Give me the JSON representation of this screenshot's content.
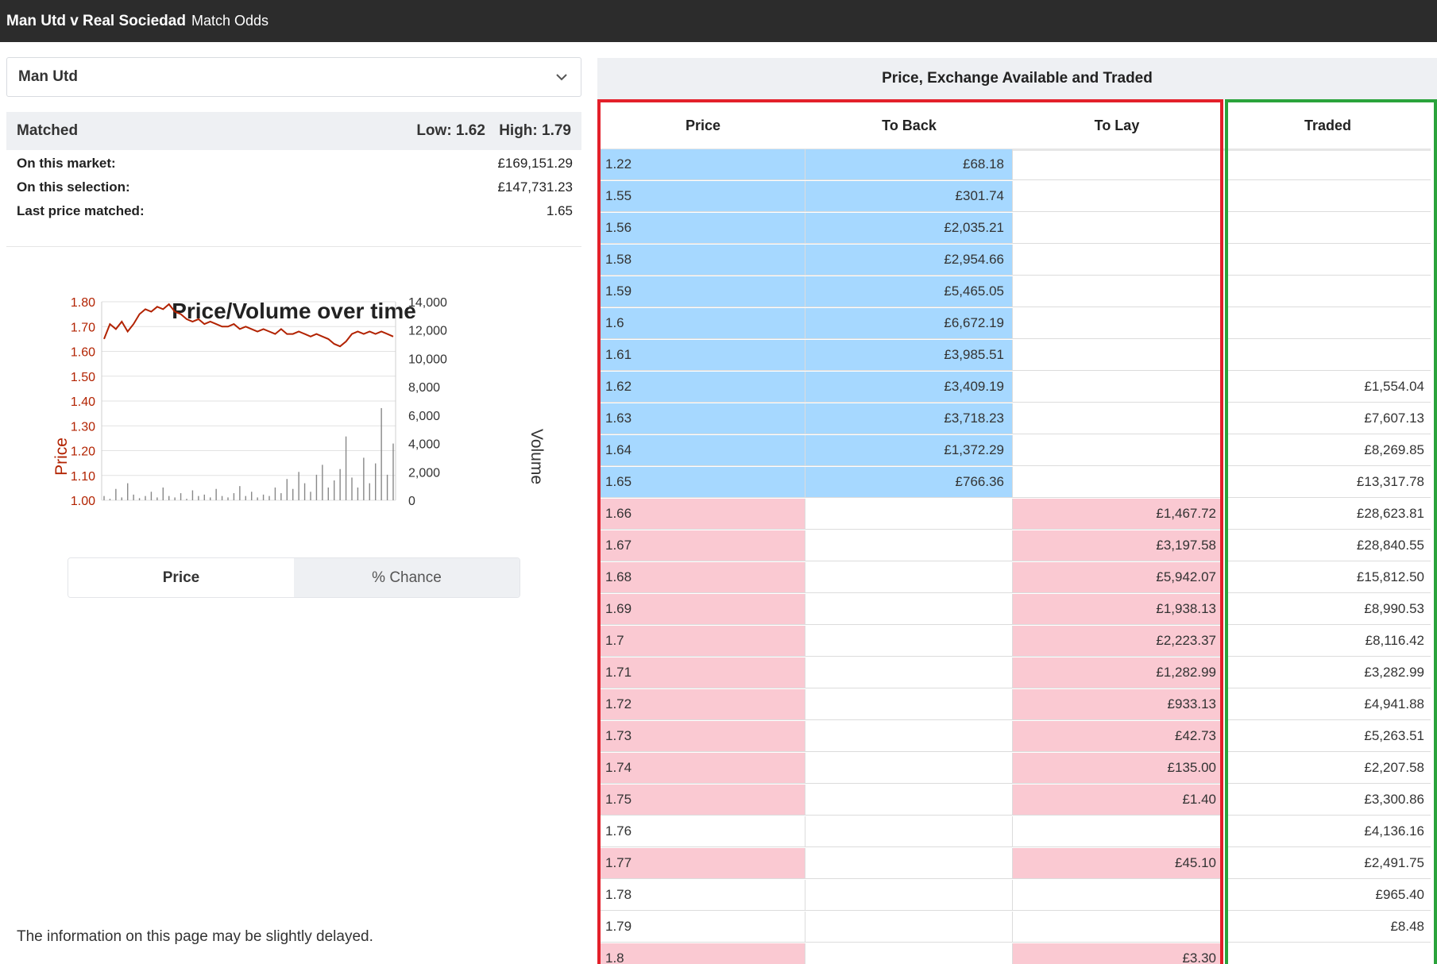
{
  "header": {
    "event": "Man Utd v Real Sociedad",
    "market": "Match Odds"
  },
  "selection": {
    "value": "Man Utd",
    "icon": "chevron-down-icon"
  },
  "matched": {
    "label": "Matched",
    "low": "Low: 1.62",
    "high": "High: 1.79"
  },
  "stats": [
    {
      "label": "On this market:",
      "value": "£169,151.29"
    },
    {
      "label": "On this selection:",
      "value": "£147,731.23"
    },
    {
      "label": "Last price matched:",
      "value": "1.65"
    }
  ],
  "chart_data": {
    "type": "line",
    "title": "Price/Volume over time",
    "ylabel": "Price",
    "y2label": "Volume",
    "ylim": [
      1.0,
      1.8
    ],
    "y2lim": [
      0,
      14000
    ],
    "yticks": [
      "1.80",
      "1.70",
      "1.60",
      "1.50",
      "1.40",
      "1.30",
      "1.20",
      "1.10",
      "1.00"
    ],
    "y2ticks": [
      "14,000",
      "12,000",
      "10,000",
      "8,000",
      "6,000",
      "4,000",
      "2,000",
      "0"
    ],
    "series": [
      {
        "kind": "price",
        "color": "#b22200",
        "values": [
          1.65,
          1.71,
          1.69,
          1.72,
          1.68,
          1.71,
          1.75,
          1.77,
          1.76,
          1.78,
          1.77,
          1.79,
          1.76,
          1.75,
          1.73,
          1.72,
          1.73,
          1.71,
          1.72,
          1.71,
          1.7,
          1.7,
          1.71,
          1.69,
          1.7,
          1.69,
          1.68,
          1.69,
          1.68,
          1.67,
          1.69,
          1.67,
          1.67,
          1.68,
          1.67,
          1.66,
          1.67,
          1.66,
          1.65,
          1.63,
          1.62,
          1.64,
          1.67,
          1.68,
          1.67,
          1.68,
          1.67,
          1.68,
          1.67,
          1.66
        ]
      },
      {
        "kind": "volume",
        "color": "#888888",
        "values": [
          300,
          100,
          800,
          200,
          1200,
          400,
          150,
          300,
          600,
          200,
          900,
          300,
          200,
          500,
          100,
          700,
          300,
          400,
          200,
          800,
          300,
          200,
          500,
          1000,
          300,
          600,
          200,
          400,
          300,
          900,
          500,
          1500,
          800,
          2000,
          1200,
          600,
          1800,
          2500,
          900,
          1400,
          2200,
          4500,
          1600,
          900,
          3000,
          1200,
          2600,
          6500,
          1800,
          4000
        ]
      }
    ]
  },
  "toggle": {
    "price": "Price",
    "chance": "% Chance"
  },
  "note": "The information on this page may be slightly delayed.",
  "ladder": {
    "title": "Price, Exchange Available and Traded",
    "columns": {
      "price": "Price",
      "back": "To Back",
      "lay": "To Lay",
      "traded": "Traded"
    },
    "rows": [
      {
        "price": "1.22",
        "back": "£68.18",
        "lay": "",
        "traded": ""
      },
      {
        "price": "1.55",
        "back": "£301.74",
        "lay": "",
        "traded": ""
      },
      {
        "price": "1.56",
        "back": "£2,035.21",
        "lay": "",
        "traded": ""
      },
      {
        "price": "1.58",
        "back": "£2,954.66",
        "lay": "",
        "traded": ""
      },
      {
        "price": "1.59",
        "back": "£5,465.05",
        "lay": "",
        "traded": ""
      },
      {
        "price": "1.6",
        "back": "£6,672.19",
        "lay": "",
        "traded": ""
      },
      {
        "price": "1.61",
        "back": "£3,985.51",
        "lay": "",
        "traded": ""
      },
      {
        "price": "1.62",
        "back": "£3,409.19",
        "lay": "",
        "traded": "£1,554.04"
      },
      {
        "price": "1.63",
        "back": "£3,718.23",
        "lay": "",
        "traded": "£7,607.13"
      },
      {
        "price": "1.64",
        "back": "£1,372.29",
        "lay": "",
        "traded": "£8,269.85"
      },
      {
        "price": "1.65",
        "back": "£766.36",
        "lay": "",
        "traded": "£13,317.78"
      },
      {
        "price": "1.66",
        "back": "",
        "lay": "£1,467.72",
        "traded": "£28,623.81"
      },
      {
        "price": "1.67",
        "back": "",
        "lay": "£3,197.58",
        "traded": "£28,840.55"
      },
      {
        "price": "1.68",
        "back": "",
        "lay": "£5,942.07",
        "traded": "£15,812.50"
      },
      {
        "price": "1.69",
        "back": "",
        "lay": "£1,938.13",
        "traded": "£8,990.53"
      },
      {
        "price": "1.7",
        "back": "",
        "lay": "£2,223.37",
        "traded": "£8,116.42"
      },
      {
        "price": "1.71",
        "back": "",
        "lay": "£1,282.99",
        "traded": "£3,282.99"
      },
      {
        "price": "1.72",
        "back": "",
        "lay": "£933.13",
        "traded": "£4,941.88"
      },
      {
        "price": "1.73",
        "back": "",
        "lay": "£42.73",
        "traded": "£5,263.51"
      },
      {
        "price": "1.74",
        "back": "",
        "lay": "£135.00",
        "traded": "£2,207.58"
      },
      {
        "price": "1.75",
        "back": "",
        "lay": "£1.40",
        "traded": "£3,300.86"
      },
      {
        "price": "1.76",
        "back": "",
        "lay": "",
        "traded": "£4,136.16"
      },
      {
        "price": "1.77",
        "back": "",
        "lay": "£45.10",
        "traded": "£2,491.75"
      },
      {
        "price": "1.78",
        "back": "",
        "lay": "",
        "traded": "£965.40"
      },
      {
        "price": "1.79",
        "back": "",
        "lay": "",
        "traded": "£8.48"
      },
      {
        "price": "1.8",
        "back": "",
        "lay": "£3.30",
        "traded": ""
      }
    ]
  },
  "colors": {
    "back": "#a6d8ff",
    "lay": "#fac9d2",
    "red_box": "#e3202a",
    "green_box": "#2aa33b",
    "price_axis": "#b22200"
  }
}
